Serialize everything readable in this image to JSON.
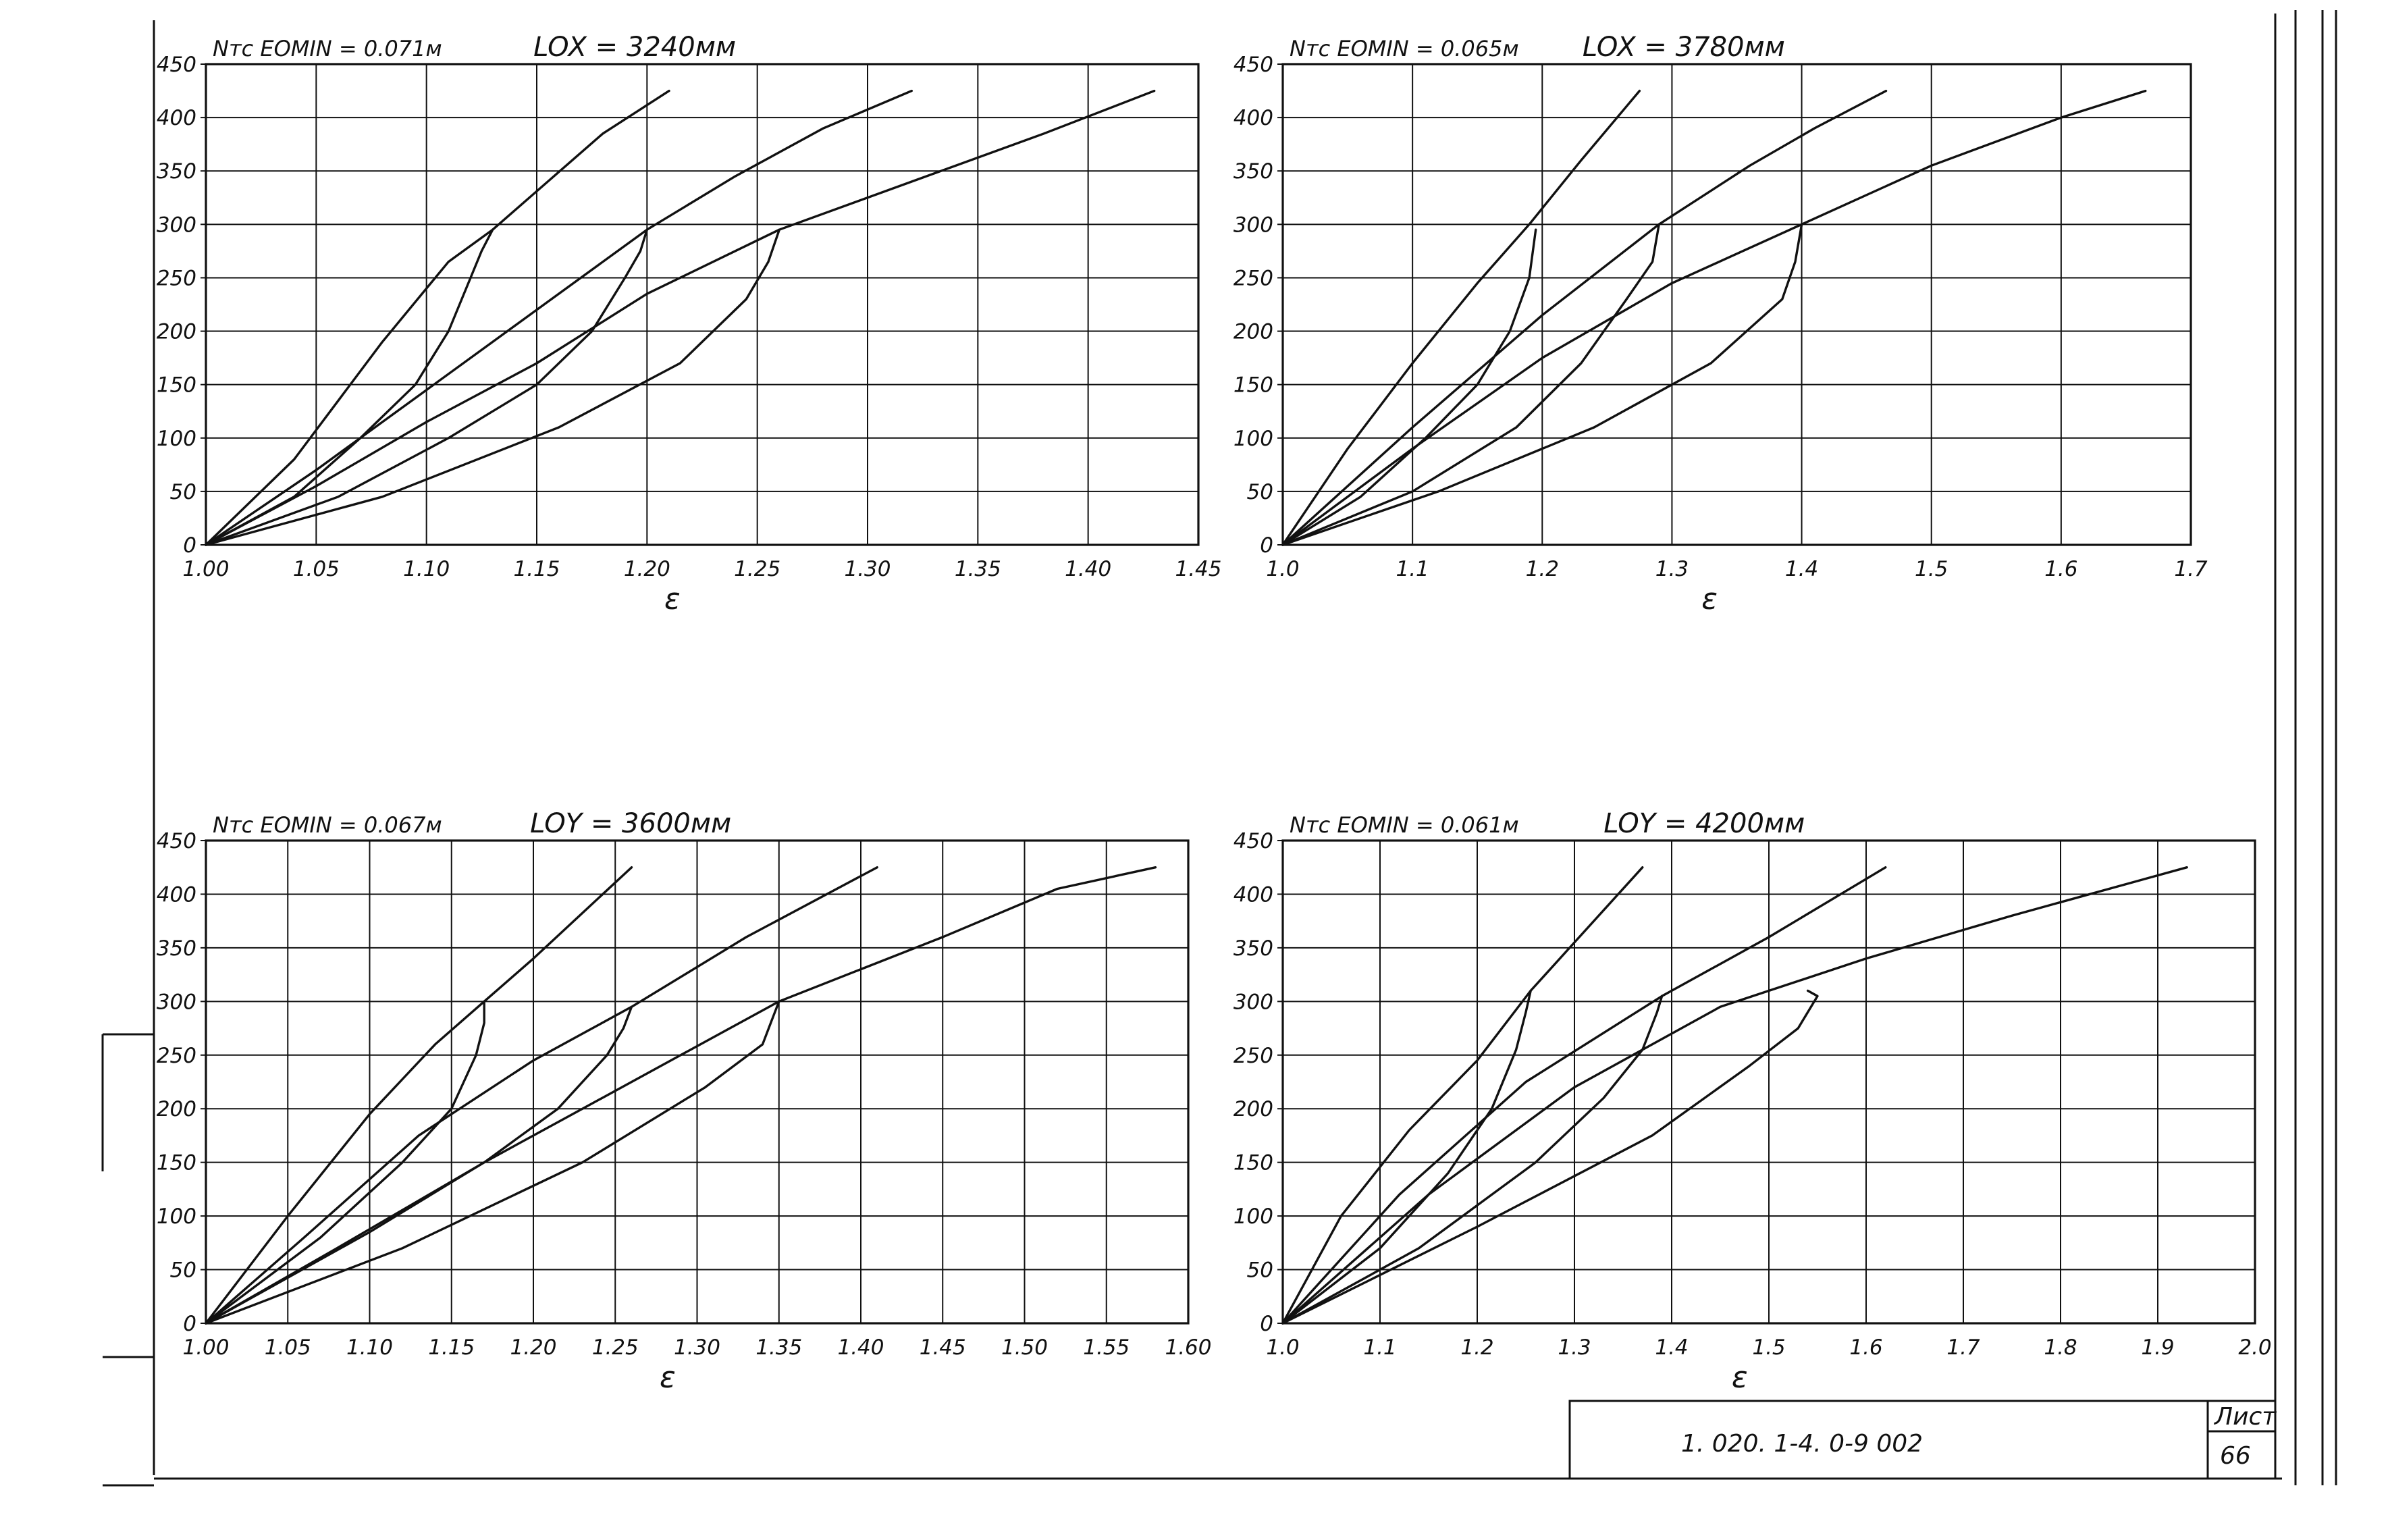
{
  "document": {
    "code": "1. 020. 1-4. 0-9  002",
    "sheet_label": "Лист",
    "sheet_number": "66"
  },
  "chart_data": [
    {
      "type": "line",
      "title_left": "Nтс EOMIN = 0.071м",
      "title_right": "LOX = 3240мм",
      "xlabel": "ε",
      "ylabel": "",
      "xlim": [
        1.0,
        1.45
      ],
      "ylim": [
        0,
        450
      ],
      "x_ticks": [
        "1.00",
        "1.05",
        "1.10",
        "1.15",
        "1.20",
        "1.25",
        "1.30",
        "1.35",
        "1.40",
        "1.45"
      ],
      "y_ticks": [
        "0",
        "50",
        "100",
        "150",
        "200",
        "250",
        "300",
        "350",
        "400",
        "450"
      ],
      "grid": true,
      "series": [
        {
          "x": [
            1.0,
            1.04,
            1.08,
            1.11,
            1.13,
            1.155,
            1.18,
            1.21
          ],
          "y": [
            0,
            80,
            190,
            265,
            295,
            340,
            385,
            425
          ]
        },
        {
          "x": [
            1.0,
            1.05,
            1.1,
            1.15,
            1.2,
            1.24,
            1.28,
            1.32
          ],
          "y": [
            0,
            70,
            145,
            220,
            295,
            345,
            390,
            425
          ]
        },
        {
          "x": [
            1.0,
            1.05,
            1.1,
            1.15,
            1.2,
            1.26,
            1.32,
            1.38,
            1.43
          ],
          "y": [
            0,
            55,
            115,
            170,
            235,
            295,
            340,
            385,
            425
          ]
        },
        {
          "x": [
            1.0,
            1.04,
            1.07,
            1.095,
            1.11,
            1.12,
            1.125,
            1.13
          ],
          "y": [
            0,
            45,
            100,
            150,
            200,
            250,
            275,
            295
          ]
        },
        {
          "x": [
            1.0,
            1.06,
            1.11,
            1.15,
            1.175,
            1.19,
            1.197,
            1.2
          ],
          "y": [
            0,
            45,
            100,
            150,
            200,
            250,
            275,
            295
          ]
        },
        {
          "x": [
            1.0,
            1.08,
            1.16,
            1.215,
            1.245,
            1.255,
            1.26
          ],
          "y": [
            0,
            45,
            110,
            170,
            230,
            265,
            295
          ]
        }
      ]
    },
    {
      "type": "line",
      "title_left": "Nтс EOMIN = 0.065м",
      "title_right": "LOX = 3780мм",
      "xlabel": "ε",
      "ylabel": "",
      "xlim": [
        1.0,
        1.7
      ],
      "ylim": [
        0,
        450
      ],
      "x_ticks": [
        "1.0",
        "1.1",
        "1.2",
        "1.3",
        "1.4",
        "1.5",
        "1.6",
        "1.7"
      ],
      "y_ticks": [
        "0",
        "50",
        "100",
        "150",
        "200",
        "250",
        "300",
        "350",
        "400",
        "450"
      ],
      "grid": true,
      "series": [
        {
          "x": [
            1.0,
            1.05,
            1.1,
            1.15,
            1.19,
            1.23,
            1.275
          ],
          "y": [
            0,
            90,
            170,
            245,
            300,
            360,
            425
          ]
        },
        {
          "x": [
            1.0,
            1.1,
            1.2,
            1.29,
            1.36,
            1.41,
            1.465
          ],
          "y": [
            0,
            110,
            215,
            300,
            355,
            390,
            425
          ]
        },
        {
          "x": [
            1.0,
            1.1,
            1.2,
            1.3,
            1.4,
            1.5,
            1.6,
            1.665
          ],
          "y": [
            0,
            90,
            175,
            245,
            300,
            355,
            400,
            425
          ]
        },
        {
          "x": [
            1.0,
            1.06,
            1.11,
            1.15,
            1.175,
            1.19,
            1.195
          ],
          "y": [
            0,
            45,
            100,
            150,
            200,
            250,
            295
          ]
        },
        {
          "x": [
            1.0,
            1.1,
            1.18,
            1.23,
            1.265,
            1.285,
            1.29
          ],
          "y": [
            0,
            50,
            110,
            170,
            230,
            265,
            300
          ]
        },
        {
          "x": [
            1.0,
            1.12,
            1.24,
            1.33,
            1.385,
            1.395,
            1.4
          ],
          "y": [
            0,
            50,
            110,
            170,
            230,
            265,
            300
          ]
        }
      ]
    },
    {
      "type": "line",
      "title_left": "Nтс EOMIN = 0.067м",
      "title_right": "LOY = 3600мм",
      "xlabel": "ε",
      "ylabel": "",
      "xlim": [
        1.0,
        1.6
      ],
      "ylim": [
        0,
        450
      ],
      "x_ticks": [
        "1.00",
        "1.05",
        "1.10",
        "1.15",
        "1.20",
        "1.25",
        "1.30",
        "1.35",
        "1.40",
        "1.45",
        "1.50",
        "1.55",
        "1.60"
      ],
      "y_ticks": [
        "0",
        "50",
        "100",
        "150",
        "200",
        "250",
        "300",
        "350",
        "400",
        "450"
      ],
      "grid": true,
      "series": [
        {
          "x": [
            1.0,
            1.05,
            1.1,
            1.14,
            1.17,
            1.2,
            1.26
          ],
          "y": [
            0,
            100,
            195,
            260,
            300,
            340,
            425
          ]
        },
        {
          "x": [
            1.0,
            1.06,
            1.13,
            1.2,
            1.26,
            1.33,
            1.41
          ],
          "y": [
            0,
            80,
            175,
            245,
            295,
            360,
            425
          ]
        },
        {
          "x": [
            1.0,
            1.08,
            1.17,
            1.26,
            1.35,
            1.45,
            1.52,
            1.58
          ],
          "y": [
            0,
            70,
            150,
            225,
            300,
            360,
            405,
            425
          ]
        },
        {
          "x": [
            1.0,
            1.07,
            1.12,
            1.15,
            1.165,
            1.17,
            1.17
          ],
          "y": [
            0,
            80,
            150,
            200,
            250,
            280,
            300
          ]
        },
        {
          "x": [
            1.0,
            1.1,
            1.17,
            1.215,
            1.245,
            1.255,
            1.26
          ],
          "y": [
            0,
            85,
            150,
            200,
            250,
            275,
            295
          ]
        },
        {
          "x": [
            1.0,
            1.12,
            1.23,
            1.305,
            1.34,
            1.345,
            1.35
          ],
          "y": [
            0,
            70,
            150,
            220,
            260,
            280,
            300
          ]
        }
      ]
    },
    {
      "type": "line",
      "title_left": "Nтс EOMIN = 0.061м",
      "title_right": "LOY = 4200мм",
      "xlabel": "ε",
      "ylabel": "",
      "xlim": [
        1.0,
        2.0
      ],
      "ylim": [
        0,
        450
      ],
      "x_ticks": [
        "1.0",
        "1.1",
        "1.2",
        "1.3",
        "1.4",
        "1.5",
        "1.6",
        "1.7",
        "1.8",
        "1.9",
        "2.0"
      ],
      "y_ticks": [
        "0",
        "50",
        "100",
        "150",
        "200",
        "250",
        "300",
        "350",
        "400",
        "450"
      ],
      "grid": true,
      "series": [
        {
          "x": [
            1.0,
            1.06,
            1.13,
            1.2,
            1.255,
            1.3,
            1.37
          ],
          "y": [
            0,
            100,
            180,
            245,
            310,
            355,
            425
          ]
        },
        {
          "x": [
            1.0,
            1.12,
            1.25,
            1.39,
            1.5,
            1.62
          ],
          "y": [
            0,
            120,
            225,
            305,
            360,
            425
          ]
        },
        {
          "x": [
            1.0,
            1.15,
            1.3,
            1.45,
            1.6,
            1.75,
            1.93
          ],
          "y": [
            0,
            120,
            220,
            295,
            340,
            380,
            425
          ]
        },
        {
          "x": [
            1.0,
            1.1,
            1.17,
            1.215,
            1.24,
            1.25,
            1.255
          ],
          "y": [
            0,
            70,
            140,
            200,
            255,
            290,
            310
          ]
        },
        {
          "x": [
            1.0,
            1.14,
            1.26,
            1.33,
            1.37,
            1.385,
            1.39
          ],
          "y": [
            0,
            70,
            150,
            210,
            255,
            290,
            305
          ]
        },
        {
          "x": [
            1.0,
            1.2,
            1.38,
            1.48,
            1.53,
            1.55,
            1.54
          ],
          "y": [
            0,
            90,
            175,
            240,
            275,
            305,
            310
          ]
        }
      ]
    }
  ]
}
